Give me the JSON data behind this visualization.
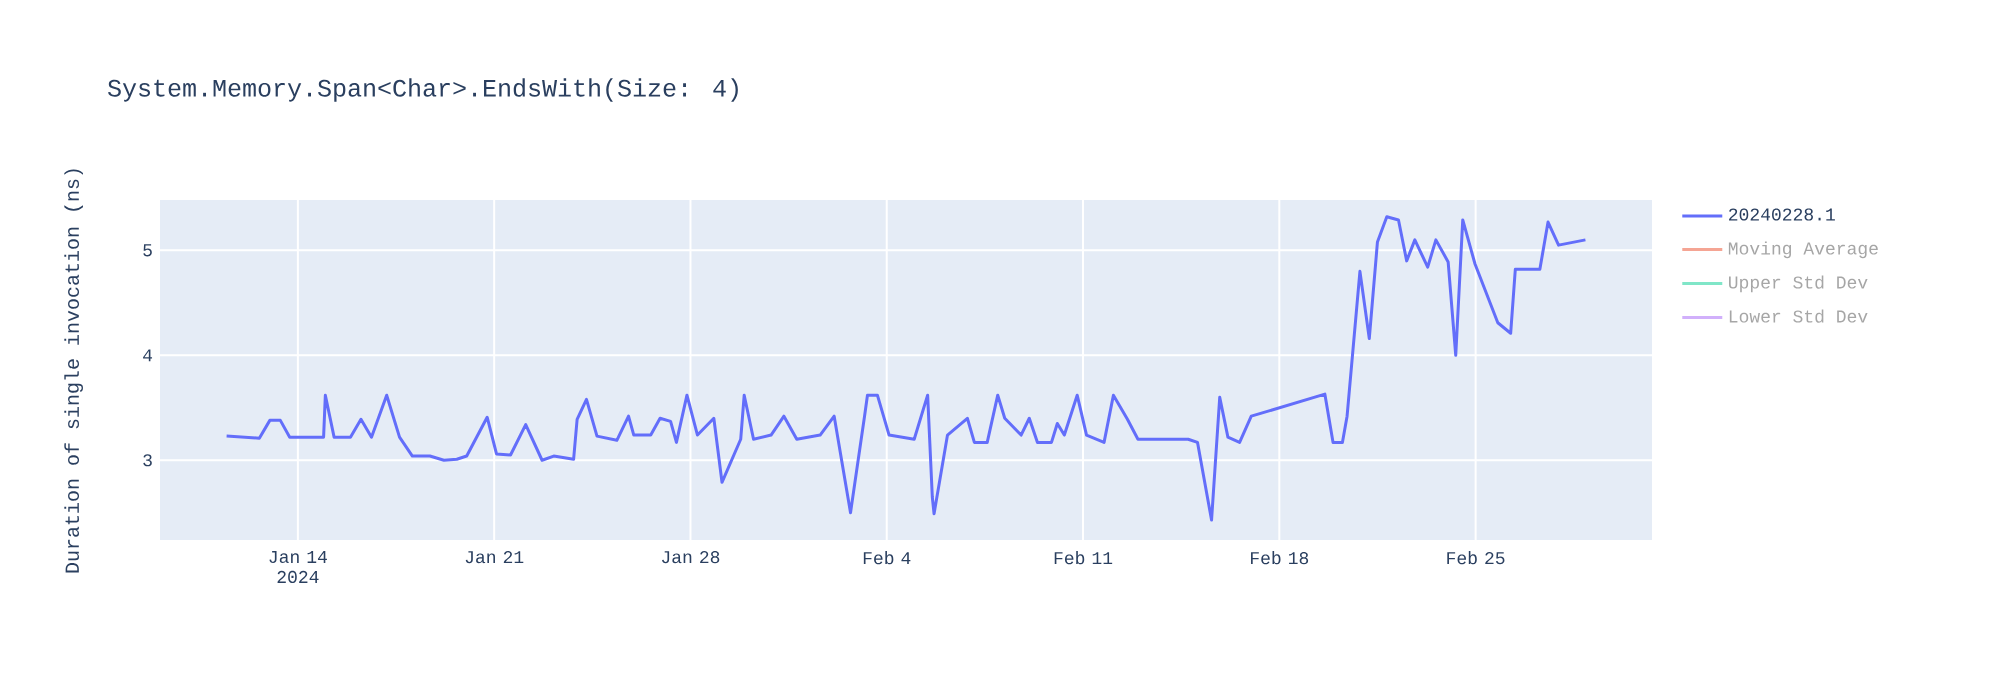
{
  "chart_data": {
    "type": "line",
    "title": "System.Memory.Span<Char>.EndsWith(Size: 4)",
    "ylabel": "Duration of single invocation (ns)",
    "x": [
      "2024-01-11T11:00",
      "2024-01-12T15:00",
      "2024-01-13T00:00",
      "2024-01-13T09:00",
      "2024-01-13T17:00",
      "2024-01-14T22:00",
      "2024-01-14T23:30",
      "2024-01-15T07:00",
      "2024-01-15T21:00",
      "2024-01-16T06:00",
      "2024-01-16T15:00",
      "2024-01-17T04:00",
      "2024-01-17T15:00",
      "2024-01-18T02:00",
      "2024-01-18T17:00",
      "2024-01-19T05:00",
      "2024-01-19T16:00",
      "2024-01-20T00:30",
      "2024-01-20T18:00",
      "2024-01-21T02:00",
      "2024-01-21T14:00",
      "2024-01-22T03:00",
      "2024-01-22T17:00",
      "2024-01-23T03:00",
      "2024-01-23T20:00",
      "2024-01-23T23:00",
      "2024-01-24T07:00",
      "2024-01-24T16:00",
      "2024-01-25T09:00",
      "2024-01-25T19:00",
      "2024-01-25T23:30",
      "2024-01-26T14:00",
      "2024-01-26T22:00",
      "2024-01-27T07:00",
      "2024-01-27T12:00",
      "2024-01-27T21:00",
      "2024-01-28T06:00",
      "2024-01-28T20:00",
      "2024-01-29T03:00",
      "2024-01-29T19:00",
      "2024-01-29T22:00",
      "2024-01-30T06:00",
      "2024-01-30T21:00",
      "2024-01-31T08:00",
      "2024-01-31T19:00",
      "2024-02-01T15:00",
      "2024-02-02T03:00",
      "2024-02-02T17:00",
      "2024-02-03T05:00",
      "2024-02-03T07:30",
      "2024-02-03T16:00",
      "2024-02-04T02:00",
      "2024-02-04T23:30",
      "2024-02-05T11:00",
      "2024-02-05T15:00",
      "2024-02-05T16:30",
      "2024-02-06T04:00",
      "2024-02-06T21:00",
      "2024-02-07T03:00",
      "2024-02-07T14:00",
      "2024-02-07T23:00",
      "2024-02-08T05:00",
      "2024-02-08T19:00",
      "2024-02-09T02:00",
      "2024-02-09T09:00",
      "2024-02-09T21:00",
      "2024-02-10T02:00",
      "2024-02-10T08:00",
      "2024-02-10T19:00",
      "2024-02-11T03:00",
      "2024-02-11T18:00",
      "2024-02-12T02:00",
      "2024-02-12T14:00",
      "2024-02-12T23:00",
      "2024-02-13T07:00",
      "2024-02-13T22:00",
      "2024-02-14T18:00",
      "2024-02-15T02:00",
      "2024-02-15T14:00",
      "2024-02-15T21:00",
      "2024-02-16T04:00",
      "2024-02-16T14:00",
      "2024-02-17T00:00",
      "2024-02-19T15:00",
      "2024-02-19T22:00",
      "2024-02-20T06:00",
      "2024-02-20T10:00",
      "2024-02-20T21:00",
      "2024-02-21T05:00",
      "2024-02-21T12:00",
      "2024-02-21T20:00",
      "2024-02-22T06:00",
      "2024-02-22T13:00",
      "2024-02-22T20:00",
      "2024-02-23T07:00",
      "2024-02-23T14:00",
      "2024-02-24T00:30",
      "2024-02-24T07:00",
      "2024-02-24T13:00",
      "2024-02-24T23:30",
      "2024-02-25T19:00",
      "2024-02-26T06:00",
      "2024-02-26T10:00",
      "2024-02-27T07:00",
      "2024-02-27T14:00",
      "2024-02-27T23:00",
      "2024-02-28T22:00"
    ],
    "series": [
      {
        "name": "20240228.1",
        "color": "#636efa",
        "values": [
          3.23,
          3.21,
          3.38,
          3.38,
          3.22,
          3.22,
          3.62,
          3.22,
          3.22,
          3.39,
          3.22,
          3.62,
          3.22,
          3.04,
          3.04,
          3.0,
          3.01,
          3.04,
          3.41,
          3.06,
          3.05,
          3.34,
          3.0,
          3.04,
          3.01,
          3.39,
          3.58,
          3.23,
          3.19,
          3.42,
          3.24,
          3.24,
          3.4,
          3.37,
          3.17,
          3.62,
          3.24,
          3.4,
          2.79,
          3.2,
          3.62,
          3.2,
          3.24,
          3.42,
          3.2,
          3.24,
          3.42,
          2.5,
          3.42,
          3.62,
          3.62,
          3.24,
          3.2,
          3.62,
          2.65,
          2.49,
          3.24,
          3.4,
          3.17,
          3.17,
          3.62,
          3.4,
          3.24,
          3.4,
          3.17,
          3.17,
          3.35,
          3.24,
          3.62,
          3.24,
          3.17,
          3.62,
          3.39,
          3.2,
          3.2,
          3.2,
          3.2,
          3.17,
          2.43,
          3.6,
          3.22,
          3.17,
          3.42,
          3.63,
          3.17,
          3.17,
          3.42,
          4.8,
          4.16,
          5.08,
          5.32,
          5.29,
          4.9,
          5.1,
          4.84,
          5.1,
          4.89,
          4.0,
          5.29,
          4.87,
          4.31,
          4.21,
          4.82,
          4.82,
          5.27,
          5.05,
          5.1
        ]
      },
      {
        "name": "Moving Average",
        "color": "#f5a594",
        "values": [
          null,
          null,
          null,
          null,
          null,
          null,
          null,
          null,
          null,
          null,
          null,
          null,
          null,
          null,
          null,
          null,
          null,
          null,
          null,
          null,
          null,
          null,
          null,
          null,
          null,
          null,
          null,
          null,
          null,
          null,
          null,
          null,
          null,
          null,
          null,
          null,
          null,
          null,
          null,
          null,
          null,
          null,
          null,
          null,
          null,
          null,
          null,
          null,
          null,
          null,
          null,
          null,
          null,
          null,
          null,
          null,
          null,
          null,
          null,
          null,
          null,
          null,
          null,
          null,
          null,
          null,
          null,
          null,
          null,
          null,
          null,
          null,
          null,
          null,
          null,
          null,
          null,
          null,
          null,
          null,
          null,
          null,
          null,
          null,
          null,
          null,
          null,
          null,
          null,
          null,
          null,
          null,
          null,
          null,
          null,
          null,
          null,
          null,
          null,
          null,
          null,
          null,
          null,
          null,
          null,
          null,
          null
        ]
      },
      {
        "name": "Upper Std Dev",
        "color": "#80e6c8",
        "values": [
          null,
          null,
          null,
          null,
          null,
          null,
          null,
          null,
          null,
          null,
          null,
          null,
          null,
          null,
          null,
          null,
          null,
          null,
          null,
          null,
          null,
          null,
          null,
          null,
          null,
          null,
          null,
          null,
          null,
          null,
          null,
          null,
          null,
          null,
          null,
          null,
          null,
          null,
          null,
          null,
          null,
          null,
          null,
          null,
          null,
          null,
          null,
          null,
          null,
          null,
          null,
          null,
          null,
          null,
          null,
          null,
          null,
          null,
          null,
          null,
          null,
          null,
          null,
          null,
          null,
          null,
          null,
          null,
          null,
          null,
          null,
          null,
          null,
          null,
          null,
          null,
          null,
          null,
          null,
          null,
          null,
          null,
          null,
          null,
          null,
          null,
          null,
          null,
          null,
          null,
          null,
          null,
          null,
          null,
          null,
          null,
          null,
          null,
          null,
          null,
          null,
          null,
          null,
          null,
          null,
          null,
          null
        ]
      },
      {
        "name": "Lower Std Dev",
        "color": "#d1b0fb",
        "values": [
          null,
          null,
          null,
          null,
          null,
          null,
          null,
          null,
          null,
          null,
          null,
          null,
          null,
          null,
          null,
          null,
          null,
          null,
          null,
          null,
          null,
          null,
          null,
          null,
          null,
          null,
          null,
          null,
          null,
          null,
          null,
          null,
          null,
          null,
          null,
          null,
          null,
          null,
          null,
          null,
          null,
          null,
          null,
          null,
          null,
          null,
          null,
          null,
          null,
          null,
          null,
          null,
          null,
          null,
          null,
          null,
          null,
          null,
          null,
          null,
          null,
          null,
          null,
          null,
          null,
          null,
          null,
          null,
          null,
          null,
          null,
          null,
          null,
          null,
          null,
          null,
          null,
          null,
          null,
          null,
          null,
          null,
          null,
          null,
          null,
          null,
          null,
          null,
          null,
          null,
          null,
          null,
          null,
          null,
          null,
          null,
          null,
          null,
          null,
          null,
          null,
          null,
          null,
          null,
          null,
          null,
          null
        ]
      }
    ],
    "xlim": [
      "2024-01-09T02:00",
      "2024-03-02T07:00"
    ],
    "xticks": [
      {
        "value": "2024-01-14",
        "label": "Jan 14 2024"
      },
      {
        "value": "2024-01-21",
        "label": "Jan 21"
      },
      {
        "value": "2024-01-28",
        "label": "Jan 28"
      },
      {
        "value": "2024-02-04",
        "label": "Feb 4"
      },
      {
        "value": "2024-02-11",
        "label": "Feb 11"
      },
      {
        "value": "2024-02-18",
        "label": "Feb 18"
      },
      {
        "value": "2024-02-25",
        "label": "Feb 25"
      }
    ],
    "ylim": [
      2.24,
      5.48
    ],
    "yticks": [
      3,
      4,
      5
    ],
    "grid": true,
    "legend": "top right",
    "marker": "none",
    "line_style": "solid"
  }
}
